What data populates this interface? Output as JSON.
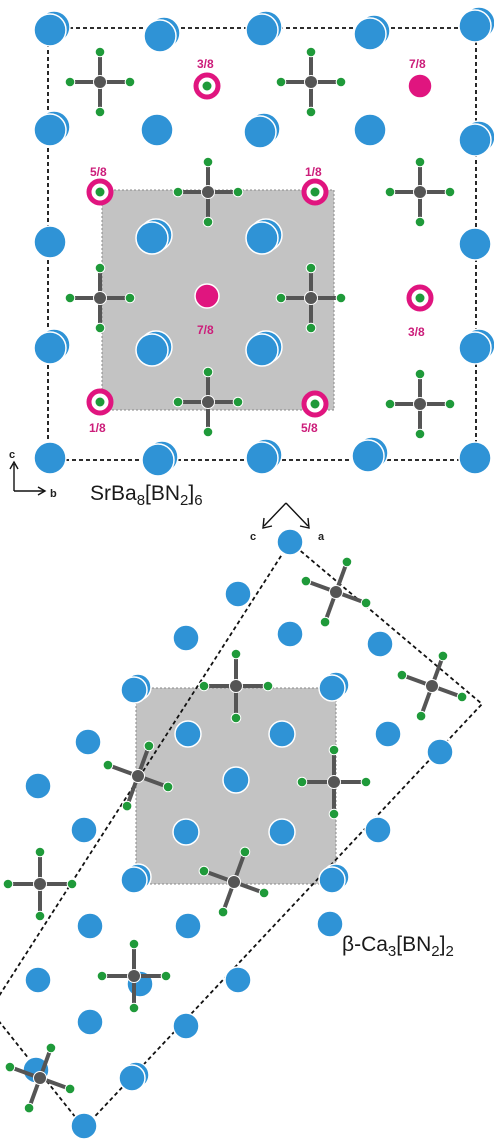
{
  "colors": {
    "heavy_atom": "#2f93d6",
    "boron": "#555555",
    "nitrogen": "#1f9a3a",
    "highlight": "#e0157f",
    "channel": "#c3c3c3",
    "cell_edge": "#111111"
  },
  "top_panel": {
    "formula": {
      "pre": "SrBa",
      "sub1": "8",
      "mid": "[BN",
      "sub2": "2",
      "post": "]",
      "sub3": "6"
    },
    "axes": {
      "vertical": "c",
      "horizontal": "b"
    },
    "fraction_labels": [
      "3/8",
      "7/8",
      "5/8",
      "1/8",
      "7/8",
      "3/8",
      "1/8",
      "5/8"
    ]
  },
  "bottom_panel": {
    "formula": {
      "pre": "β-Ca",
      "sub1": "3",
      "mid": "[BN",
      "sub2": "2",
      "post": "]",
      "sub3": "2"
    },
    "axes": {
      "left": "c",
      "right": "a"
    }
  }
}
